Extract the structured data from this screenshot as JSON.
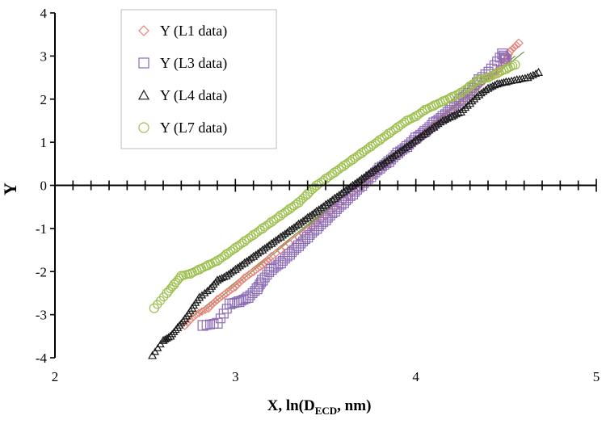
{
  "chart_data": {
    "type": "scatter",
    "title": "",
    "xlabel_main": "X, ln(D",
    "xlabel_sub": "ECD",
    "xlabel_tail": ", nm)",
    "ylabel": "Y",
    "xlim": [
      2,
      5
    ],
    "ylim": [
      -4,
      4
    ],
    "x_ticks": [
      "2",
      "3",
      "4",
      "5"
    ],
    "y_ticks": [
      "-4",
      "-3",
      "-2",
      "-1",
      "0",
      "1",
      "2",
      "3",
      "4"
    ],
    "legend_position": "top-left",
    "series": [
      {
        "name": "Y (L1 data)",
        "marker": "diamond",
        "color": "#e8837a",
        "trend": [
          [
            2.7,
            -3.25
          ],
          [
            4.6,
            3.1
          ]
        ],
        "points": [
          [
            2.72,
            -3.25
          ],
          [
            2.78,
            -3.0
          ],
          [
            2.85,
            -2.85
          ],
          [
            2.9,
            -2.65
          ],
          [
            2.95,
            -2.5
          ],
          [
            3.0,
            -2.35
          ],
          [
            3.05,
            -2.15
          ],
          [
            3.1,
            -2.0
          ],
          [
            3.15,
            -1.85
          ],
          [
            3.2,
            -1.65
          ],
          [
            3.3,
            -1.35
          ],
          [
            3.4,
            -1.05
          ],
          [
            3.5,
            -0.7
          ],
          [
            3.6,
            -0.35
          ],
          [
            3.7,
            0.0
          ],
          [
            3.8,
            0.35
          ],
          [
            3.9,
            0.7
          ],
          [
            4.0,
            1.05
          ],
          [
            4.1,
            1.4
          ],
          [
            4.2,
            1.75
          ],
          [
            4.3,
            2.1
          ],
          [
            4.38,
            2.45
          ],
          [
            4.45,
            2.65
          ],
          [
            4.5,
            2.9
          ],
          [
            4.52,
            3.1
          ],
          [
            4.57,
            3.3
          ]
        ]
      },
      {
        "name": "Y (L3 data)",
        "marker": "square",
        "color": "#8b6bb5",
        "trend": [
          [
            2.8,
            -3.0
          ],
          [
            4.55,
            3.0
          ]
        ],
        "points": [
          [
            2.82,
            -3.25
          ],
          [
            2.9,
            -3.2
          ],
          [
            2.97,
            -2.75
          ],
          [
            3.02,
            -2.7
          ],
          [
            3.07,
            -2.6
          ],
          [
            3.12,
            -2.4
          ],
          [
            3.15,
            -2.2
          ],
          [
            3.2,
            -1.95
          ],
          [
            3.25,
            -1.8
          ],
          [
            3.3,
            -1.6
          ],
          [
            3.35,
            -1.4
          ],
          [
            3.4,
            -1.2
          ],
          [
            3.45,
            -1.0
          ],
          [
            3.5,
            -0.8
          ],
          [
            3.55,
            -0.6
          ],
          [
            3.6,
            -0.4
          ],
          [
            3.65,
            -0.2
          ],
          [
            3.7,
            0.0
          ],
          [
            3.75,
            0.2
          ],
          [
            3.8,
            0.4
          ],
          [
            3.85,
            0.55
          ],
          [
            3.9,
            0.75
          ],
          [
            3.95,
            0.9
          ],
          [
            4.0,
            1.1
          ],
          [
            4.05,
            1.25
          ],
          [
            4.1,
            1.45
          ],
          [
            4.15,
            1.6
          ],
          [
            4.2,
            1.8
          ],
          [
            4.25,
            2.0
          ],
          [
            4.3,
            2.2
          ],
          [
            4.35,
            2.45
          ],
          [
            4.42,
            2.7
          ],
          [
            4.48,
            3.05
          ],
          [
            4.5,
            2.9
          ]
        ]
      },
      {
        "name": "Y (L4 data)",
        "marker": "triangle",
        "color": "#1a1a1a",
        "points": [
          [
            2.54,
            -3.95
          ],
          [
            2.6,
            -3.6
          ],
          [
            2.64,
            -3.5
          ],
          [
            2.68,
            -3.3
          ],
          [
            2.72,
            -3.1
          ],
          [
            2.76,
            -2.85
          ],
          [
            2.8,
            -2.6
          ],
          [
            2.86,
            -2.4
          ],
          [
            2.9,
            -2.2
          ],
          [
            2.95,
            -2.1
          ],
          [
            3.0,
            -1.95
          ],
          [
            3.05,
            -1.8
          ],
          [
            3.1,
            -1.65
          ],
          [
            3.15,
            -1.5
          ],
          [
            3.2,
            -1.35
          ],
          [
            3.25,
            -1.2
          ],
          [
            3.3,
            -1.05
          ],
          [
            3.35,
            -0.9
          ],
          [
            3.4,
            -0.75
          ],
          [
            3.45,
            -0.6
          ],
          [
            3.5,
            -0.45
          ],
          [
            3.55,
            -0.3
          ],
          [
            3.6,
            -0.15
          ],
          [
            3.65,
            0.0
          ],
          [
            3.7,
            0.15
          ],
          [
            3.75,
            0.3
          ],
          [
            3.8,
            0.45
          ],
          [
            3.85,
            0.6
          ],
          [
            3.9,
            0.75
          ],
          [
            3.95,
            0.9
          ],
          [
            4.0,
            1.05
          ],
          [
            4.05,
            1.2
          ],
          [
            4.1,
            1.35
          ],
          [
            4.15,
            1.5
          ],
          [
            4.2,
            1.6
          ],
          [
            4.25,
            1.7
          ],
          [
            4.3,
            1.9
          ],
          [
            4.35,
            2.1
          ],
          [
            4.4,
            2.25
          ],
          [
            4.45,
            2.35
          ],
          [
            4.5,
            2.4
          ],
          [
            4.56,
            2.45
          ],
          [
            4.62,
            2.5
          ],
          [
            4.68,
            2.62
          ]
        ]
      },
      {
        "name": "Y (L7 data)",
        "marker": "circle",
        "color": "#9dbf4e",
        "points": [
          [
            2.55,
            -2.85
          ],
          [
            2.62,
            -2.5
          ],
          [
            2.66,
            -2.3
          ],
          [
            2.7,
            -2.1
          ],
          [
            2.75,
            -2.05
          ],
          [
            2.8,
            -1.95
          ],
          [
            2.85,
            -1.85
          ],
          [
            2.9,
            -1.75
          ],
          [
            2.95,
            -1.6
          ],
          [
            3.0,
            -1.45
          ],
          [
            3.05,
            -1.3
          ],
          [
            3.1,
            -1.15
          ],
          [
            3.15,
            -1.0
          ],
          [
            3.2,
            -0.85
          ],
          [
            3.25,
            -0.7
          ],
          [
            3.3,
            -0.55
          ],
          [
            3.35,
            -0.4
          ],
          [
            3.4,
            -0.2
          ],
          [
            3.45,
            0.0
          ],
          [
            3.5,
            0.15
          ],
          [
            3.55,
            0.3
          ],
          [
            3.6,
            0.45
          ],
          [
            3.65,
            0.6
          ],
          [
            3.7,
            0.75
          ],
          [
            3.75,
            0.9
          ],
          [
            3.8,
            1.05
          ],
          [
            3.85,
            1.2
          ],
          [
            3.9,
            1.35
          ],
          [
            3.95,
            1.5
          ],
          [
            4.0,
            1.6
          ],
          [
            4.05,
            1.75
          ],
          [
            4.1,
            1.85
          ],
          [
            4.15,
            1.95
          ],
          [
            4.2,
            2.05
          ],
          [
            4.25,
            2.15
          ],
          [
            4.3,
            2.3
          ],
          [
            4.35,
            2.45
          ],
          [
            4.4,
            2.5
          ],
          [
            4.45,
            2.6
          ],
          [
            4.5,
            2.7
          ],
          [
            4.55,
            2.8
          ]
        ]
      }
    ]
  }
}
